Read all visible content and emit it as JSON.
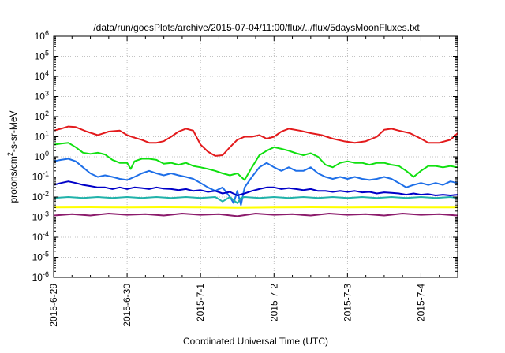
{
  "chart_data": {
    "type": "line",
    "title": "/data/run/goesPlots/archive/2015-07-04/11:00/flux/../flux/5daysMoonFluxes.txt",
    "xlabel": "Coordinated Universal Time (UTC)",
    "ylabel": "protons/cm²-s-sr-MeV",
    "ylabel_parts": {
      "pre": "protons/cm",
      "sup": "2",
      "post": "-s-sr-MeV"
    },
    "yscale": "log",
    "ylim_exp": [
      -6,
      6
    ],
    "y_tick_labels": [
      {
        "base": "10",
        "exp": "-6"
      },
      {
        "base": "10",
        "exp": "-5"
      },
      {
        "base": "10",
        "exp": "-4"
      },
      {
        "base": "10",
        "exp": "-3"
      },
      {
        "base": "10",
        "exp": "-2"
      },
      {
        "base": "10",
        "exp": "-1"
      },
      {
        "base": "10",
        "exp": "0"
      },
      {
        "base": "10",
        "exp": "1"
      },
      {
        "base": "10",
        "exp": "2"
      },
      {
        "base": "10",
        "exp": "3"
      },
      {
        "base": "10",
        "exp": "4"
      },
      {
        "base": "10",
        "exp": "5"
      },
      {
        "base": "10",
        "exp": "6"
      }
    ],
    "x_range_days": [
      0,
      5.5
    ],
    "x_tick_labels": [
      "2015-6-29",
      "2015-6-30",
      "2015-7-1",
      "2015-7-2",
      "2015-7-3",
      "2015-7-4"
    ],
    "grid": true,
    "series": [
      {
        "color": "#e31a1c",
        "points": [
          [
            0,
            20
          ],
          [
            0.1,
            25
          ],
          [
            0.2,
            32
          ],
          [
            0.3,
            30
          ],
          [
            0.45,
            18
          ],
          [
            0.6,
            12
          ],
          [
            0.75,
            18
          ],
          [
            0.9,
            20
          ],
          [
            1.0,
            12
          ],
          [
            1.1,
            9
          ],
          [
            1.2,
            7
          ],
          [
            1.3,
            5
          ],
          [
            1.4,
            5
          ],
          [
            1.5,
            6
          ],
          [
            1.6,
            10
          ],
          [
            1.7,
            18
          ],
          [
            1.8,
            25
          ],
          [
            1.9,
            20
          ],
          [
            2.0,
            4
          ],
          [
            2.1,
            1.8
          ],
          [
            2.2,
            1.1
          ],
          [
            2.3,
            1.2
          ],
          [
            2.4,
            3
          ],
          [
            2.5,
            7
          ],
          [
            2.6,
            10
          ],
          [
            2.7,
            10
          ],
          [
            2.8,
            12
          ],
          [
            2.9,
            8
          ],
          [
            3.0,
            10
          ],
          [
            3.1,
            18
          ],
          [
            3.2,
            25
          ],
          [
            3.35,
            20
          ],
          [
            3.5,
            15
          ],
          [
            3.65,
            12
          ],
          [
            3.8,
            8
          ],
          [
            3.95,
            6
          ],
          [
            4.1,
            5
          ],
          [
            4.25,
            6
          ],
          [
            4.4,
            10
          ],
          [
            4.5,
            22
          ],
          [
            4.6,
            25
          ],
          [
            4.7,
            20
          ],
          [
            4.85,
            15
          ],
          [
            5.0,
            8
          ],
          [
            5.1,
            5
          ],
          [
            5.25,
            5
          ],
          [
            5.4,
            7
          ],
          [
            5.5,
            15
          ]
        ]
      },
      {
        "color": "#10e010",
        "points": [
          [
            0,
            4
          ],
          [
            0.1,
            4.5
          ],
          [
            0.2,
            5
          ],
          [
            0.3,
            3
          ],
          [
            0.4,
            1.6
          ],
          [
            0.5,
            1.4
          ],
          [
            0.6,
            1.6
          ],
          [
            0.7,
            1.3
          ],
          [
            0.8,
            0.7
          ],
          [
            0.9,
            0.5
          ],
          [
            1.0,
            0.5
          ],
          [
            1.05,
            0.25
          ],
          [
            1.1,
            0.6
          ],
          [
            1.2,
            0.8
          ],
          [
            1.3,
            0.8
          ],
          [
            1.4,
            0.7
          ],
          [
            1.5,
            0.45
          ],
          [
            1.6,
            0.5
          ],
          [
            1.7,
            0.4
          ],
          [
            1.8,
            0.5
          ],
          [
            1.9,
            0.35
          ],
          [
            2.0,
            0.3
          ],
          [
            2.1,
            0.25
          ],
          [
            2.2,
            0.2
          ],
          [
            2.3,
            0.15
          ],
          [
            2.4,
            0.12
          ],
          [
            2.5,
            0.15
          ],
          [
            2.6,
            0.07
          ],
          [
            2.7,
            0.3
          ],
          [
            2.8,
            1.2
          ],
          [
            2.9,
            2
          ],
          [
            3.0,
            3
          ],
          [
            3.1,
            2.5
          ],
          [
            3.2,
            2
          ],
          [
            3.3,
            1.5
          ],
          [
            3.4,
            1.2
          ],
          [
            3.5,
            1.5
          ],
          [
            3.6,
            1
          ],
          [
            3.7,
            0.4
          ],
          [
            3.8,
            0.3
          ],
          [
            3.9,
            0.5
          ],
          [
            4.0,
            0.6
          ],
          [
            4.1,
            0.5
          ],
          [
            4.2,
            0.5
          ],
          [
            4.3,
            0.4
          ],
          [
            4.4,
            0.5
          ],
          [
            4.5,
            0.5
          ],
          [
            4.6,
            0.4
          ],
          [
            4.7,
            0.35
          ],
          [
            4.8,
            0.2
          ],
          [
            4.9,
            0.1
          ],
          [
            5.0,
            0.2
          ],
          [
            5.1,
            0.35
          ],
          [
            5.2,
            0.35
          ],
          [
            5.3,
            0.3
          ],
          [
            5.4,
            0.35
          ],
          [
            5.5,
            0.3
          ]
        ]
      },
      {
        "color": "#1e6fe8",
        "points": [
          [
            0,
            0.6
          ],
          [
            0.1,
            0.7
          ],
          [
            0.2,
            0.8
          ],
          [
            0.3,
            0.6
          ],
          [
            0.4,
            0.3
          ],
          [
            0.5,
            0.15
          ],
          [
            0.6,
            0.1
          ],
          [
            0.7,
            0.12
          ],
          [
            0.8,
            0.1
          ],
          [
            0.9,
            0.08
          ],
          [
            1.0,
            0.07
          ],
          [
            1.1,
            0.1
          ],
          [
            1.2,
            0.15
          ],
          [
            1.3,
            0.2
          ],
          [
            1.4,
            0.15
          ],
          [
            1.5,
            0.12
          ],
          [
            1.6,
            0.15
          ],
          [
            1.7,
            0.12
          ],
          [
            1.8,
            0.1
          ],
          [
            1.9,
            0.08
          ],
          [
            2.0,
            0.05
          ],
          [
            2.1,
            0.03
          ],
          [
            2.2,
            0.02
          ],
          [
            2.3,
            0.03
          ],
          [
            2.4,
            0.01
          ],
          [
            2.45,
            0.005
          ],
          [
            2.5,
            0.02
          ],
          [
            2.55,
            0.004
          ],
          [
            2.6,
            0.03
          ],
          [
            2.7,
            0.1
          ],
          [
            2.8,
            0.3
          ],
          [
            2.9,
            0.5
          ],
          [
            3.0,
            0.3
          ],
          [
            3.1,
            0.2
          ],
          [
            3.2,
            0.3
          ],
          [
            3.3,
            0.2
          ],
          [
            3.4,
            0.2
          ],
          [
            3.5,
            0.3
          ],
          [
            3.6,
            0.15
          ],
          [
            3.7,
            0.1
          ],
          [
            3.8,
            0.08
          ],
          [
            3.9,
            0.1
          ],
          [
            4.0,
            0.08
          ],
          [
            4.1,
            0.1
          ],
          [
            4.2,
            0.08
          ],
          [
            4.3,
            0.07
          ],
          [
            4.4,
            0.08
          ],
          [
            4.5,
            0.1
          ],
          [
            4.6,
            0.08
          ],
          [
            4.7,
            0.05
          ],
          [
            4.8,
            0.03
          ],
          [
            4.9,
            0.04
          ],
          [
            5.0,
            0.05
          ],
          [
            5.1,
            0.04
          ],
          [
            5.2,
            0.05
          ],
          [
            5.3,
            0.04
          ],
          [
            5.4,
            0.06
          ],
          [
            5.5,
            0.05
          ]
        ]
      },
      {
        "color": "#0000c8",
        "points": [
          [
            0,
            0.04
          ],
          [
            0.1,
            0.05
          ],
          [
            0.2,
            0.06
          ],
          [
            0.3,
            0.05
          ],
          [
            0.4,
            0.04
          ],
          [
            0.5,
            0.035
          ],
          [
            0.6,
            0.03
          ],
          [
            0.7,
            0.03
          ],
          [
            0.8,
            0.025
          ],
          [
            0.9,
            0.03
          ],
          [
            1.0,
            0.025
          ],
          [
            1.1,
            0.03
          ],
          [
            1.2,
            0.028
          ],
          [
            1.3,
            0.025
          ],
          [
            1.4,
            0.03
          ],
          [
            1.5,
            0.026
          ],
          [
            1.6,
            0.025
          ],
          [
            1.7,
            0.022
          ],
          [
            1.8,
            0.025
          ],
          [
            1.9,
            0.02
          ],
          [
            2.0,
            0.022
          ],
          [
            2.1,
            0.018
          ],
          [
            2.2,
            0.02
          ],
          [
            2.3,
            0.015
          ],
          [
            2.4,
            0.018
          ],
          [
            2.5,
            0.012
          ],
          [
            2.6,
            0.015
          ],
          [
            2.7,
            0.02
          ],
          [
            2.8,
            0.025
          ],
          [
            2.9,
            0.03
          ],
          [
            3.0,
            0.03
          ],
          [
            3.1,
            0.025
          ],
          [
            3.2,
            0.028
          ],
          [
            3.3,
            0.025
          ],
          [
            3.4,
            0.022
          ],
          [
            3.5,
            0.025
          ],
          [
            3.6,
            0.02
          ],
          [
            3.7,
            0.02
          ],
          [
            3.8,
            0.018
          ],
          [
            3.9,
            0.02
          ],
          [
            4.0,
            0.018
          ],
          [
            4.1,
            0.02
          ],
          [
            4.2,
            0.017
          ],
          [
            4.3,
            0.018
          ],
          [
            4.4,
            0.015
          ],
          [
            4.5,
            0.017
          ],
          [
            4.6,
            0.016
          ],
          [
            4.7,
            0.015
          ],
          [
            4.8,
            0.013
          ],
          [
            4.9,
            0.015
          ],
          [
            5.0,
            0.013
          ],
          [
            5.1,
            0.014
          ],
          [
            5.2,
            0.012
          ],
          [
            5.3,
            0.013
          ],
          [
            5.4,
            0.012
          ],
          [
            5.5,
            0.013
          ]
        ]
      },
      {
        "color": "#20b2aa",
        "points": [
          [
            0,
            0.009
          ],
          [
            0.2,
            0.01
          ],
          [
            0.4,
            0.009
          ],
          [
            0.6,
            0.01
          ],
          [
            0.8,
            0.009
          ],
          [
            1.0,
            0.01
          ],
          [
            1.2,
            0.009
          ],
          [
            1.4,
            0.01
          ],
          [
            1.6,
            0.009
          ],
          [
            1.8,
            0.01
          ],
          [
            2.0,
            0.009
          ],
          [
            2.2,
            0.01
          ],
          [
            2.3,
            0.006
          ],
          [
            2.4,
            0.01
          ],
          [
            2.5,
            0.005
          ],
          [
            2.55,
            0.009
          ],
          [
            2.6,
            0.01
          ],
          [
            2.8,
            0.009
          ],
          [
            3.0,
            0.01
          ],
          [
            3.2,
            0.009
          ],
          [
            3.4,
            0.01
          ],
          [
            3.6,
            0.009
          ],
          [
            3.8,
            0.01
          ],
          [
            4.0,
            0.009
          ],
          [
            4.2,
            0.01
          ],
          [
            4.4,
            0.009
          ],
          [
            4.6,
            0.01
          ],
          [
            4.8,
            0.009
          ],
          [
            5.0,
            0.01
          ],
          [
            5.2,
            0.009
          ],
          [
            5.4,
            0.01
          ],
          [
            5.5,
            0.009
          ]
        ]
      },
      {
        "color": "#ffff00",
        "points": [
          [
            0,
            0.003
          ],
          [
            0.5,
            0.0031
          ],
          [
            1.0,
            0.003
          ],
          [
            1.5,
            0.0031
          ],
          [
            2.0,
            0.003
          ],
          [
            2.5,
            0.0029
          ],
          [
            3.0,
            0.003
          ],
          [
            3.5,
            0.0031
          ],
          [
            4.0,
            0.003
          ],
          [
            4.5,
            0.0031
          ],
          [
            5.0,
            0.003
          ],
          [
            5.5,
            0.003
          ]
        ]
      },
      {
        "color": "#8b1a6b",
        "points": [
          [
            0,
            0.0012
          ],
          [
            0.25,
            0.0014
          ],
          [
            0.5,
            0.0012
          ],
          [
            0.75,
            0.0015
          ],
          [
            1.0,
            0.0013
          ],
          [
            1.25,
            0.0014
          ],
          [
            1.5,
            0.0012
          ],
          [
            1.75,
            0.0015
          ],
          [
            2.0,
            0.0013
          ],
          [
            2.25,
            0.0014
          ],
          [
            2.5,
            0.0011
          ],
          [
            2.75,
            0.0015
          ],
          [
            3.0,
            0.0013
          ],
          [
            3.25,
            0.0014
          ],
          [
            3.5,
            0.0012
          ],
          [
            3.75,
            0.0015
          ],
          [
            4.0,
            0.0013
          ],
          [
            4.25,
            0.0014
          ],
          [
            4.5,
            0.0012
          ],
          [
            4.75,
            0.0015
          ],
          [
            5.0,
            0.0013
          ],
          [
            5.25,
            0.0014
          ],
          [
            5.5,
            0.0012
          ]
        ]
      }
    ]
  }
}
